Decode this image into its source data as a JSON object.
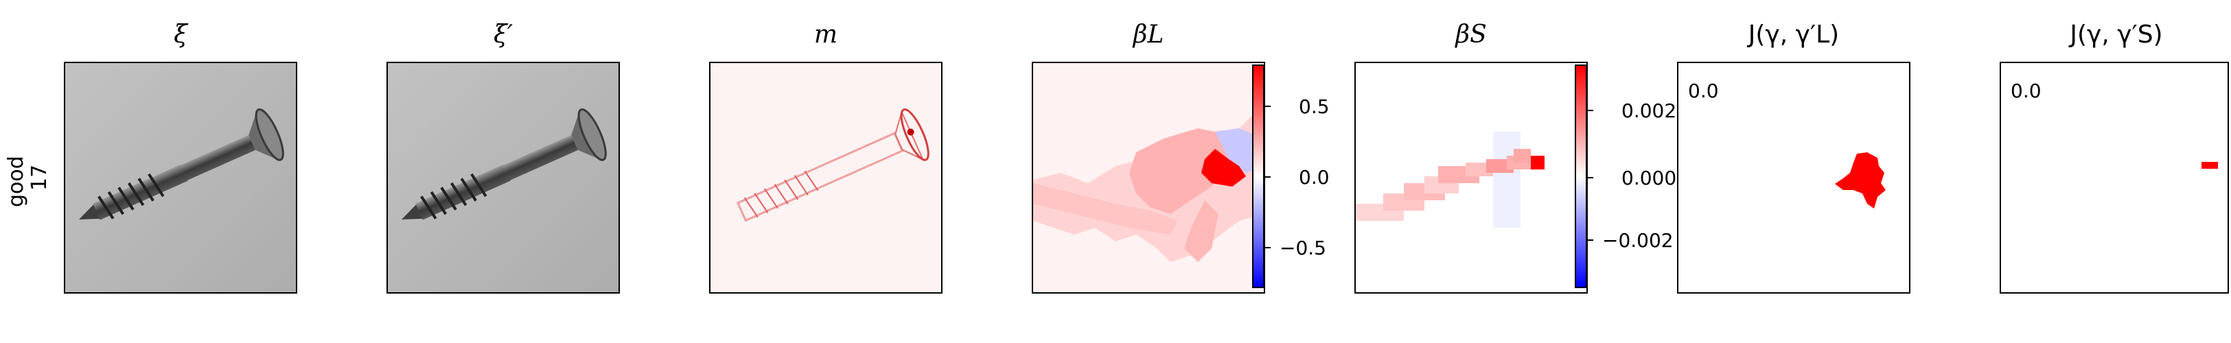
{
  "row_label": {
    "line1": "good",
    "line2": "17"
  },
  "panels": {
    "xi": {
      "title": "ξ"
    },
    "xi_prime": {
      "title": "ξ′"
    },
    "m": {
      "title": "m"
    },
    "beta_L": {
      "title": "βL",
      "cbar_ticks": [
        "0.5",
        "0.0",
        "−0.5"
      ]
    },
    "beta_S": {
      "title": "βS",
      "cbar_ticks": [
        "0.002",
        "0.000",
        "−0.002"
      ]
    },
    "J_L": {
      "title": "J(γ, γ′L)",
      "value": "0.0"
    },
    "J_S": {
      "title": "J(γ, γ′S)",
      "value": "0.0"
    }
  },
  "colors": {
    "positive": "#ff0000",
    "negative": "#0000ff",
    "neutral": "#ffffff",
    "photo_background": "#b8b8b8"
  },
  "icons": [
    "screw-photo",
    "diverging-heatmap",
    "binary-mask"
  ]
}
